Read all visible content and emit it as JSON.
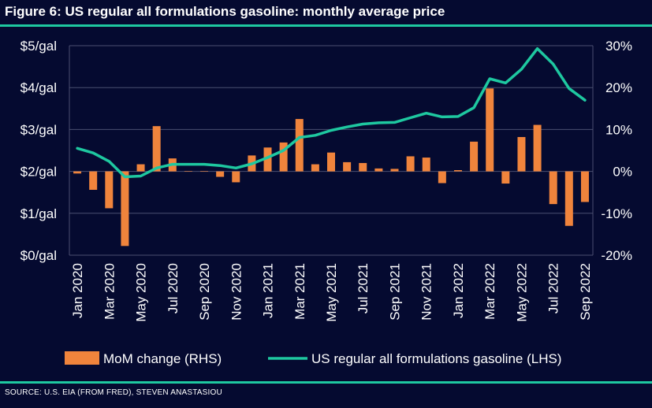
{
  "title": "Figure 6: US regular all formulations gasoline: monthly average price",
  "source": "SOURCE: U.S. EIA (FROM FRED), STEVEN ANASTASIOU",
  "colors": {
    "background": "#050a30",
    "accent": "#1ec8a0",
    "bar": "#f0843c",
    "line": "#1ec8a0",
    "grid": "#4a4f70",
    "text": "#ffffff"
  },
  "chart_data": {
    "type": "bar",
    "title": "Figure 6: US regular all formulations gasoline: monthly average price",
    "categories": [
      "Jan 2020",
      "Feb 2020",
      "Mar 2020",
      "Apr 2020",
      "May 2020",
      "Jun 2020",
      "Jul 2020",
      "Aug 2020",
      "Sep 2020",
      "Oct 2020",
      "Nov 2020",
      "Dec 2020",
      "Jan 2021",
      "Feb 2021",
      "Mar 2021",
      "Apr 2021",
      "May 2021",
      "Jun 2021",
      "Jul 2021",
      "Aug 2021",
      "Sep 2021",
      "Oct 2021",
      "Nov 2021",
      "Dec 2021",
      "Jan 2022",
      "Feb 2022",
      "Mar 2022",
      "Apr 2022",
      "May 2022",
      "Jun 2022",
      "Jul 2022",
      "Aug 2022",
      "Sep 2022"
    ],
    "x_tick_labels": [
      "Jan 2020",
      "Mar 2020",
      "May 2020",
      "Jul 2020",
      "Sep 2020",
      "Nov 2020",
      "Jan 2021",
      "Mar 2021",
      "May 2021",
      "Jul 2021",
      "Sep 2021",
      "Nov 2021",
      "Jan 2022",
      "Mar 2022",
      "May 2022",
      "Jul 2022",
      "Sep 2022"
    ],
    "series": [
      {
        "name": "MoM change (RHS)",
        "type": "bar",
        "axis": "right",
        "color": "#f0843c",
        "values": [
          -0.5,
          -4.4,
          -8.8,
          -17.8,
          1.7,
          10.8,
          3.1,
          0.1,
          0.1,
          -1.3,
          -2.6,
          3.8,
          5.7,
          6.9,
          12.5,
          1.7,
          4.5,
          2.2,
          2.0,
          0.7,
          0.6,
          3.6,
          3.3,
          -2.8,
          0.3,
          7.1,
          19.8,
          -2.9,
          8.2,
          11.1,
          -7.8,
          -13.0,
          -7.3
        ]
      },
      {
        "name": "US regular all formulations gasoline (LHS)",
        "type": "line",
        "axis": "left",
        "color": "#1ec8a0",
        "values": [
          2.55,
          2.44,
          2.24,
          1.87,
          1.89,
          2.08,
          2.17,
          2.17,
          2.17,
          2.14,
          2.08,
          2.18,
          2.33,
          2.5,
          2.81,
          2.86,
          2.98,
          3.06,
          3.13,
          3.16,
          3.17,
          3.28,
          3.39,
          3.3,
          3.31,
          3.52,
          4.21,
          4.11,
          4.44,
          4.93,
          4.56,
          3.98,
          3.7
        ]
      }
    ],
    "y_left": {
      "ticks": [
        "$0/gal",
        "$1/gal",
        "$2/gal",
        "$3/gal",
        "$4/gal",
        "$5/gal"
      ],
      "ylim": [
        0,
        5
      ]
    },
    "y_right": {
      "ticks": [
        "-20%",
        "-10%",
        "0%",
        "10%",
        "20%",
        "30%"
      ],
      "ylim": [
        -20,
        30
      ]
    },
    "grid": "horizontal",
    "legend_position": "bottom"
  }
}
